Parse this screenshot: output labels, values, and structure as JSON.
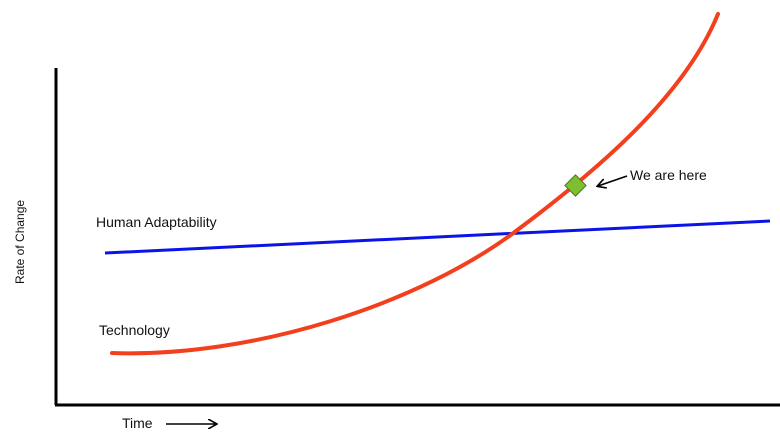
{
  "diagram": {
    "y_axis_label": "Rate of Change",
    "x_axis_label": "Time",
    "series": [
      {
        "name": "Human Adaptability",
        "color": "#0a14e6"
      },
      {
        "name": "Technology",
        "color": "#f2401e"
      }
    ],
    "annotation": "We are here",
    "marker_color": "#7dbf2e"
  }
}
